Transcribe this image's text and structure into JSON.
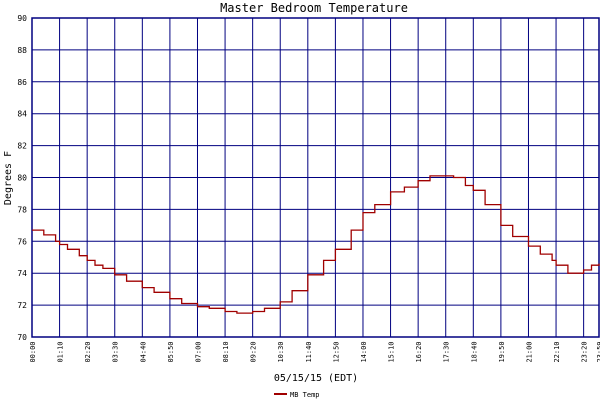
{
  "chart_data": {
    "type": "line",
    "title": "Master Bedroom Temperature",
    "xlabel": "05/15/15 (EDT)",
    "ylabel": "Degrees F",
    "ylim": [
      70,
      90
    ],
    "yticks": [
      70,
      72,
      74,
      76,
      78,
      80,
      82,
      84,
      86,
      88,
      90
    ],
    "xticks": [
      "00:00",
      "01:10",
      "02:20",
      "03:30",
      "04:40",
      "05:50",
      "07:00",
      "08:10",
      "09:20",
      "10:30",
      "11:40",
      "12:50",
      "14:00",
      "15:10",
      "16:20",
      "17:30",
      "18:40",
      "19:50",
      "21:00",
      "22:10",
      "23:20",
      "23:59"
    ],
    "grid": true,
    "legend_position": "bottom-left",
    "colors": {
      "series": "#a00000",
      "grid": "#000080",
      "text": "#000000"
    },
    "series": [
      {
        "name": "MB Temp",
        "x": [
          "00:00",
          "00:30",
          "01:00",
          "01:10",
          "01:30",
          "02:00",
          "02:20",
          "02:40",
          "03:00",
          "03:30",
          "04:00",
          "04:40",
          "05:10",
          "05:50",
          "06:20",
          "07:00",
          "07:30",
          "08:10",
          "08:40",
          "09:20",
          "09:50",
          "10:30",
          "11:00",
          "11:40",
          "12:20",
          "12:50",
          "13:30",
          "14:00",
          "14:30",
          "15:10",
          "15:45",
          "16:20",
          "16:50",
          "17:30",
          "17:50",
          "18:20",
          "18:40",
          "19:10",
          "19:50",
          "20:20",
          "21:00",
          "21:30",
          "22:00",
          "22:10",
          "22:40",
          "23:00",
          "23:20",
          "23:40",
          "23:59"
        ],
        "values": [
          76.7,
          76.4,
          76.0,
          75.8,
          75.5,
          75.1,
          74.8,
          74.5,
          74.3,
          73.9,
          73.5,
          73.1,
          72.8,
          72.4,
          72.1,
          71.9,
          71.8,
          71.6,
          71.5,
          71.6,
          71.8,
          72.2,
          72.9,
          73.9,
          74.8,
          75.5,
          76.7,
          77.8,
          78.3,
          79.1,
          79.4,
          79.8,
          80.1,
          80.1,
          80.0,
          79.5,
          79.2,
          78.3,
          77.0,
          76.3,
          75.7,
          75.2,
          74.8,
          74.5,
          74.0,
          74.0,
          74.2,
          74.5,
          74.6
        ]
      }
    ]
  }
}
